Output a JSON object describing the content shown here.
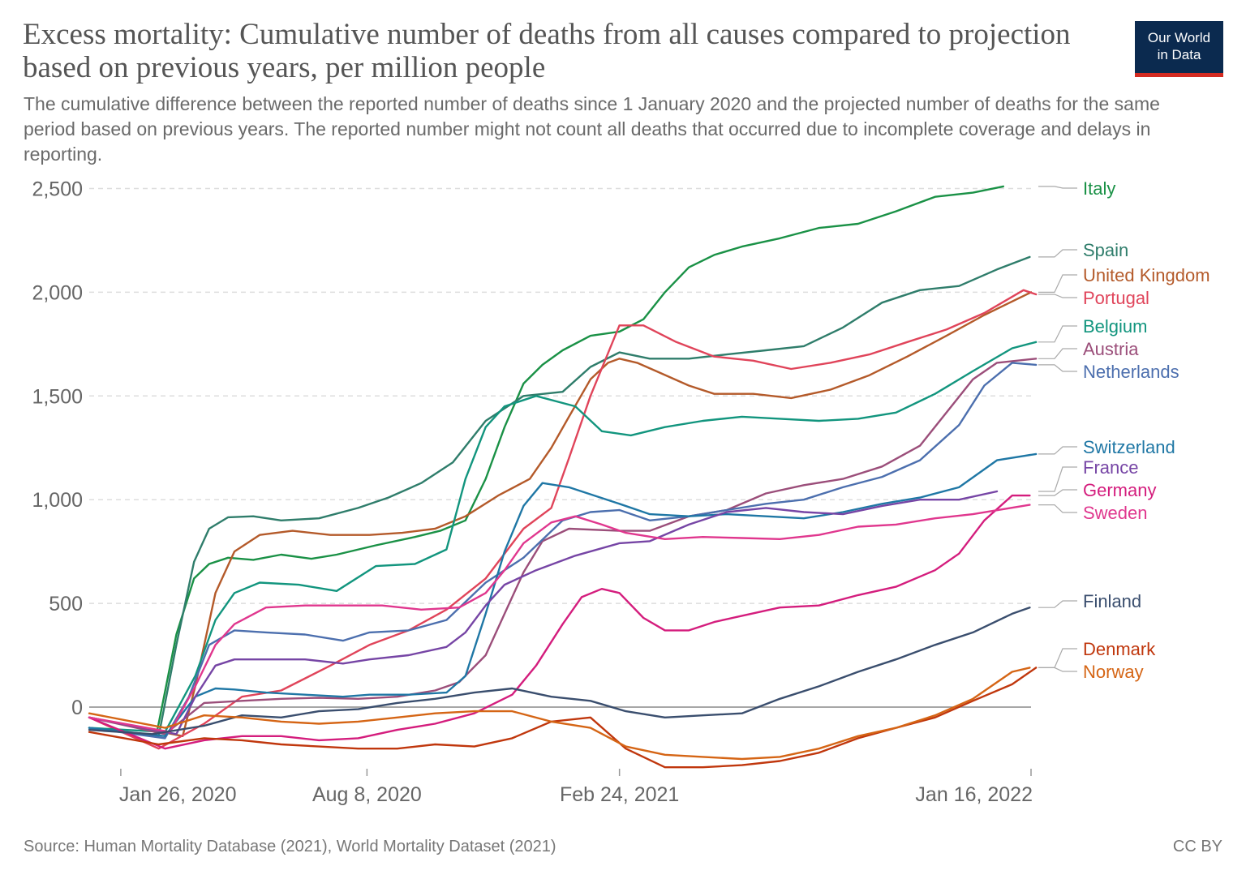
{
  "title": "Excess mortality: Cumulative number of deaths from all causes compared to projection based on previous years, per million people",
  "subtitle": "The cumulative difference between the reported number of deaths since 1 January 2020 and the projected number of deaths for the same period based on previous years. The reported number might not count all deaths that occurred due to incomplete coverage and delays in reporting.",
  "logo": {
    "line1": "Our World",
    "line2": "in Data"
  },
  "footer": {
    "source": "Source: Human Mortality Database (2021), World Mortality Dataset (2021)",
    "license": "CC BY"
  },
  "chart_data": {
    "type": "line",
    "title": "Excess mortality: Cumulative number of deaths from all causes compared to projection based on previous years, per million people",
    "xlabel": "",
    "ylabel": "",
    "x_range": [
      "2020-01-01",
      "2022-01-16"
    ],
    "ylim": [
      -320,
      2550
    ],
    "yticks": [
      0,
      500,
      1000,
      1500,
      2000,
      2500
    ],
    "ytick_labels": [
      "0",
      "500",
      "1,000",
      "1,500",
      "2,000",
      "2,500"
    ],
    "xticks": [
      "2020-01-26",
      "2020-08-08",
      "2021-02-24",
      "2022-01-16"
    ],
    "xtick_labels": [
      "Jan 26, 2020",
      "Aug 8, 2020",
      "Feb 24, 2021",
      "Jan 16, 2022"
    ],
    "grid": "horizontal dashed",
    "legend": "right, end labels",
    "series": [
      {
        "name": "Italy",
        "color": "#1a9146",
        "x": [
          "2020-01-01",
          "2020-02-23",
          "2020-03-10",
          "2020-03-24",
          "2020-04-05",
          "2020-04-20",
          "2020-05-10",
          "2020-06-01",
          "2020-06-25",
          "2020-07-15",
          "2020-08-15",
          "2020-09-15",
          "2020-10-05",
          "2020-10-25",
          "2020-11-10",
          "2020-11-25",
          "2020-12-10",
          "2020-12-25",
          "2021-01-10",
          "2021-02-01",
          "2021-02-24",
          "2021-03-15",
          "2021-04-01",
          "2021-04-20",
          "2021-05-10",
          "2021-06-01",
          "2021-07-01",
          "2021-08-01",
          "2021-09-01",
          "2021-10-01",
          "2021-11-01",
          "2021-12-01",
          "2021-12-25"
        ],
        "y": [
          -100,
          -140,
          350,
          620,
          690,
          720,
          710,
          735,
          715,
          735,
          780,
          820,
          850,
          900,
          1100,
          1350,
          1560,
          1650,
          1720,
          1790,
          1810,
          1870,
          2000,
          2120,
          2180,
          2220,
          2260,
          2310,
          2330,
          2390,
          2460,
          2480,
          2510
        ]
      },
      {
        "name": "Spain",
        "color": "#2f7d6b",
        "x": [
          "2020-01-01",
          "2020-02-25",
          "2020-03-10",
          "2020-03-24",
          "2020-04-05",
          "2020-04-20",
          "2020-05-10",
          "2020-06-01",
          "2020-07-01",
          "2020-08-01",
          "2020-08-25",
          "2020-09-20",
          "2020-10-15",
          "2020-11-10",
          "2020-12-10",
          "2021-01-10",
          "2021-02-01",
          "2021-02-24",
          "2021-03-20",
          "2021-04-20",
          "2021-05-20",
          "2021-06-20",
          "2021-07-20",
          "2021-08-20",
          "2021-09-20",
          "2021-10-20",
          "2021-11-20",
          "2021-12-20",
          "2022-01-15"
        ],
        "y": [
          -100,
          -140,
          300,
          700,
          860,
          915,
          920,
          900,
          910,
          960,
          1010,
          1080,
          1180,
          1380,
          1500,
          1520,
          1640,
          1710,
          1680,
          1680,
          1700,
          1720,
          1740,
          1830,
          1950,
          2010,
          2030,
          2110,
          2170
        ]
      },
      {
        "name": "United Kingdom",
        "color": "#b45a2a",
        "x": [
          "2020-01-01",
          "2020-03-15",
          "2020-03-25",
          "2020-04-10",
          "2020-04-25",
          "2020-05-15",
          "2020-06-10",
          "2020-07-10",
          "2020-08-10",
          "2020-09-05",
          "2020-10-01",
          "2020-10-25",
          "2020-11-20",
          "2020-12-15",
          "2021-01-01",
          "2021-01-15",
          "2021-02-01",
          "2021-02-15",
          "2021-02-24",
          "2021-03-10",
          "2021-03-25",
          "2021-04-20",
          "2021-05-10",
          "2021-06-10",
          "2021-07-10",
          "2021-08-10",
          "2021-09-10",
          "2021-10-10",
          "2021-11-10",
          "2021-12-10",
          "2022-01-16"
        ],
        "y": [
          -50,
          -140,
          100,
          550,
          750,
          830,
          850,
          830,
          830,
          840,
          860,
          920,
          1020,
          1100,
          1250,
          1400,
          1580,
          1660,
          1680,
          1660,
          1620,
          1550,
          1510,
          1510,
          1490,
          1530,
          1600,
          1690,
          1790,
          1890,
          2000
        ]
      },
      {
        "name": "Portugal",
        "color": "#e0445a",
        "x": [
          "2020-01-01",
          "2020-02-25",
          "2020-04-01",
          "2020-05-01",
          "2020-06-01",
          "2020-07-10",
          "2020-08-10",
          "2020-09-10",
          "2020-10-10",
          "2020-11-10",
          "2020-12-10",
          "2021-01-01",
          "2021-01-15",
          "2021-02-01",
          "2021-02-24",
          "2021-03-15",
          "2021-04-10",
          "2021-05-10",
          "2021-06-10",
          "2021-07-10",
          "2021-08-10",
          "2021-09-10",
          "2021-10-10",
          "2021-11-10",
          "2021-12-10",
          "2022-01-10",
          "2022-01-20"
        ],
        "y": [
          -50,
          -200,
          -80,
          50,
          80,
          200,
          300,
          370,
          470,
          620,
          860,
          960,
          1200,
          1500,
          1840,
          1840,
          1760,
          1690,
          1670,
          1630,
          1660,
          1700,
          1760,
          1820,
          1900,
          2010,
          1990
        ]
      },
      {
        "name": "Belgium",
        "color": "#12957e",
        "x": [
          "2020-01-01",
          "2020-03-01",
          "2020-03-25",
          "2020-04-10",
          "2020-04-25",
          "2020-05-15",
          "2020-06-15",
          "2020-07-15",
          "2020-08-15",
          "2020-09-15",
          "2020-10-10",
          "2020-10-25",
          "2020-11-10",
          "2020-11-25",
          "2020-12-20",
          "2021-01-20",
          "2021-02-10",
          "2021-03-05",
          "2021-04-01",
          "2021-05-01",
          "2021-06-01",
          "2021-07-01",
          "2021-08-01",
          "2021-09-01",
          "2021-10-01",
          "2021-11-01",
          "2021-12-01",
          "2022-01-01",
          "2022-01-20"
        ],
        "y": [
          -100,
          -120,
          150,
          420,
          550,
          600,
          590,
          560,
          680,
          690,
          760,
          1100,
          1350,
          1450,
          1500,
          1450,
          1330,
          1310,
          1350,
          1380,
          1400,
          1390,
          1380,
          1390,
          1420,
          1510,
          1620,
          1730,
          1760
        ]
      },
      {
        "name": "Austria",
        "color": "#9b4e7a",
        "x": [
          "2020-01-01",
          "2020-03-01",
          "2020-04-01",
          "2020-05-01",
          "2020-06-01",
          "2020-07-01",
          "2020-08-01",
          "2020-09-01",
          "2020-10-01",
          "2020-10-20",
          "2020-11-10",
          "2020-11-25",
          "2020-12-10",
          "2020-12-25",
          "2021-01-15",
          "2021-02-24",
          "2021-03-20",
          "2021-04-20",
          "2021-05-20",
          "2021-06-20",
          "2021-07-20",
          "2021-08-20",
          "2021-09-20",
          "2021-10-20",
          "2021-11-10",
          "2021-12-01",
          "2021-12-20",
          "2022-01-20"
        ],
        "y": [
          -50,
          -130,
          20,
          30,
          40,
          45,
          40,
          50,
          80,
          120,
          250,
          450,
          650,
          800,
          860,
          850,
          850,
          920,
          950,
          1030,
          1070,
          1100,
          1160,
          1260,
          1420,
          1580,
          1660,
          1680
        ]
      },
      {
        "name": "Netherlands",
        "color": "#4c6fae",
        "x": [
          "2020-01-01",
          "2020-03-01",
          "2020-03-20",
          "2020-04-05",
          "2020-04-25",
          "2020-05-20",
          "2020-06-20",
          "2020-07-20",
          "2020-08-10",
          "2020-09-10",
          "2020-10-10",
          "2020-11-10",
          "2020-12-10",
          "2021-01-10",
          "2021-02-01",
          "2021-02-24",
          "2021-03-20",
          "2021-04-20",
          "2021-05-20",
          "2021-06-20",
          "2021-07-20",
          "2021-08-20",
          "2021-09-20",
          "2021-10-20",
          "2021-11-20",
          "2021-12-10",
          "2022-01-01",
          "2022-01-20"
        ],
        "y": [
          -100,
          -150,
          50,
          300,
          370,
          360,
          350,
          320,
          360,
          370,
          420,
          600,
          720,
          900,
          940,
          950,
          900,
          920,
          950,
          980,
          1000,
          1060,
          1110,
          1190,
          1360,
          1550,
          1660,
          1650
        ]
      },
      {
        "name": "Switzerland",
        "color": "#1f77a5",
        "x": [
          "2020-01-01",
          "2020-03-01",
          "2020-03-25",
          "2020-04-10",
          "2020-04-25",
          "2020-05-20",
          "2020-06-20",
          "2020-07-20",
          "2020-08-10",
          "2020-09-10",
          "2020-10-10",
          "2020-10-25",
          "2020-11-10",
          "2020-11-25",
          "2020-12-10",
          "2020-12-25",
          "2021-01-15",
          "2021-02-24",
          "2021-03-20",
          "2021-04-20",
          "2021-05-20",
          "2021-06-20",
          "2021-07-20",
          "2021-08-20",
          "2021-09-20",
          "2021-10-20",
          "2021-11-20",
          "2021-12-20",
          "2022-01-20"
        ],
        "y": [
          -100,
          -140,
          50,
          90,
          85,
          70,
          60,
          50,
          60,
          60,
          70,
          150,
          450,
          750,
          970,
          1080,
          1060,
          980,
          930,
          920,
          930,
          920,
          910,
          940,
          980,
          1010,
          1060,
          1190,
          1220
        ]
      },
      {
        "name": "France",
        "color": "#7645a5",
        "x": [
          "2020-01-01",
          "2020-03-10",
          "2020-03-25",
          "2020-04-10",
          "2020-04-25",
          "2020-05-20",
          "2020-06-20",
          "2020-07-20",
          "2020-08-10",
          "2020-09-10",
          "2020-10-10",
          "2020-10-25",
          "2020-11-10",
          "2020-11-25",
          "2020-12-20",
          "2021-01-20",
          "2021-02-24",
          "2021-03-20",
          "2021-04-20",
          "2021-05-20",
          "2021-06-20",
          "2021-07-20",
          "2021-08-20",
          "2021-09-20",
          "2021-10-20",
          "2021-11-20",
          "2021-12-20"
        ],
        "y": [
          -50,
          -130,
          50,
          200,
          230,
          230,
          230,
          210,
          230,
          250,
          290,
          360,
          490,
          590,
          660,
          730,
          790,
          800,
          880,
          940,
          960,
          940,
          930,
          970,
          1000,
          1000,
          1040
        ]
      },
      {
        "name": "Germany",
        "color": "#d41d7d",
        "x": [
          "2020-01-01",
          "2020-03-01",
          "2020-04-01",
          "2020-05-01",
          "2020-06-01",
          "2020-07-01",
          "2020-08-01",
          "2020-09-01",
          "2020-10-01",
          "2020-11-01",
          "2020-12-01",
          "2020-12-20",
          "2021-01-10",
          "2021-01-25",
          "2021-02-10",
          "2021-02-24",
          "2021-03-15",
          "2021-04-01",
          "2021-04-20",
          "2021-05-10",
          "2021-06-01",
          "2021-07-01",
          "2021-08-01",
          "2021-09-01",
          "2021-10-01",
          "2021-11-01",
          "2021-11-20",
          "2021-12-10",
          "2022-01-01",
          "2022-01-15"
        ],
        "y": [
          -50,
          -200,
          -160,
          -140,
          -140,
          -160,
          -150,
          -110,
          -80,
          -30,
          60,
          200,
          400,
          530,
          570,
          550,
          430,
          370,
          370,
          410,
          440,
          480,
          490,
          540,
          580,
          660,
          740,
          900,
          1020,
          1020
        ]
      },
      {
        "name": "Sweden",
        "color": "#e0378e",
        "x": [
          "2020-01-01",
          "2020-03-05",
          "2020-03-25",
          "2020-04-10",
          "2020-04-25",
          "2020-05-20",
          "2020-06-20",
          "2020-07-20",
          "2020-08-20",
          "2020-09-20",
          "2020-10-20",
          "2020-11-10",
          "2020-11-25",
          "2020-12-10",
          "2021-01-01",
          "2021-01-20",
          "2021-02-10",
          "2021-03-01",
          "2021-04-01",
          "2021-05-01",
          "2021-06-01",
          "2021-07-01",
          "2021-08-01",
          "2021-09-01",
          "2021-10-01",
          "2021-11-01",
          "2021-12-01",
          "2022-01-15"
        ],
        "y": [
          -50,
          -120,
          100,
          300,
          400,
          480,
          490,
          490,
          490,
          470,
          480,
          550,
          660,
          790,
          890,
          920,
          880,
          840,
          810,
          820,
          815,
          810,
          830,
          870,
          880,
          910,
          930,
          975
        ]
      },
      {
        "name": "Finland",
        "color": "#3a4e6e",
        "x": [
          "2020-01-01",
          "2020-02-20",
          "2020-04-01",
          "2020-05-01",
          "2020-06-01",
          "2020-07-01",
          "2020-08-01",
          "2020-09-01",
          "2020-10-01",
          "2020-11-01",
          "2020-12-01",
          "2021-01-01",
          "2021-02-01",
          "2021-03-01",
          "2021-04-01",
          "2021-05-01",
          "2021-06-01",
          "2021-07-01",
          "2021-08-01",
          "2021-09-01",
          "2021-10-01",
          "2021-11-01",
          "2021-12-01",
          "2022-01-01",
          "2022-01-15"
        ],
        "y": [
          -110,
          -130,
          -90,
          -40,
          -50,
          -20,
          -10,
          20,
          40,
          70,
          90,
          50,
          30,
          -20,
          -50,
          -40,
          -30,
          40,
          100,
          170,
          230,
          300,
          360,
          450,
          480
        ]
      },
      {
        "name": "Denmark",
        "color": "#c0370d",
        "x": [
          "2020-01-01",
          "2020-02-25",
          "2020-04-01",
          "2020-05-01",
          "2020-06-01",
          "2020-07-01",
          "2020-08-01",
          "2020-09-01",
          "2020-10-01",
          "2020-11-01",
          "2020-12-01",
          "2021-01-01",
          "2021-02-01",
          "2021-03-01",
          "2021-04-01",
          "2021-05-01",
          "2021-06-01",
          "2021-07-01",
          "2021-08-01",
          "2021-09-01",
          "2021-10-01",
          "2021-11-01",
          "2021-12-01",
          "2022-01-01",
          "2022-01-20"
        ],
        "y": [
          -120,
          -180,
          -150,
          -160,
          -180,
          -190,
          -200,
          -200,
          -180,
          -190,
          -150,
          -70,
          -50,
          -200,
          -290,
          -290,
          -280,
          -260,
          -220,
          -150,
          -100,
          -50,
          30,
          110,
          190
        ]
      },
      {
        "name": "Norway",
        "color": "#d56515",
        "x": [
          "2020-01-01",
          "2020-03-01",
          "2020-04-01",
          "2020-05-01",
          "2020-06-01",
          "2020-07-01",
          "2020-08-01",
          "2020-09-01",
          "2020-10-01",
          "2020-11-01",
          "2020-12-01",
          "2021-01-01",
          "2021-02-01",
          "2021-03-01",
          "2021-04-01",
          "2021-05-01",
          "2021-06-01",
          "2021-07-01",
          "2021-08-01",
          "2021-09-01",
          "2021-10-01",
          "2021-11-01",
          "2021-12-01",
          "2022-01-01",
          "2022-01-15"
        ],
        "y": [
          -30,
          -100,
          -40,
          -50,
          -70,
          -80,
          -70,
          -50,
          -30,
          -20,
          -20,
          -70,
          -100,
          -190,
          -230,
          -240,
          -250,
          -240,
          -200,
          -140,
          -100,
          -40,
          40,
          170,
          190
        ]
      }
    ]
  }
}
